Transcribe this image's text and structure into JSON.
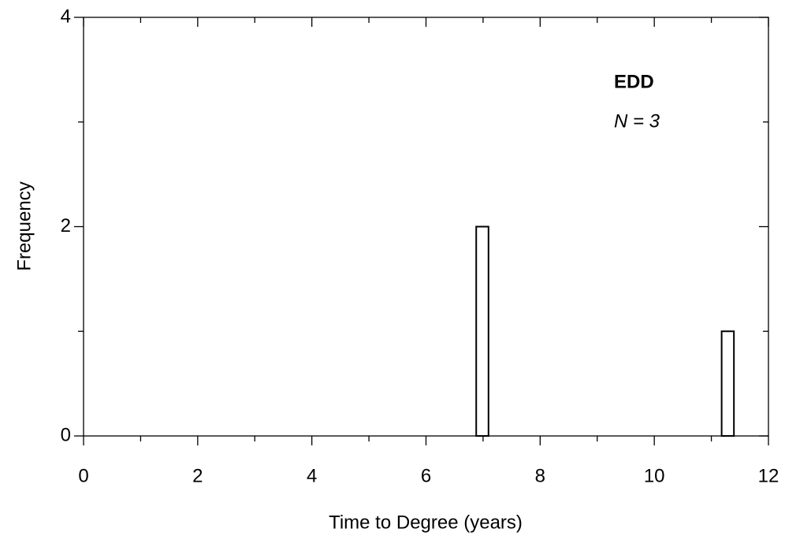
{
  "chart_data": {
    "type": "histogram",
    "xlabel": "Time to Degree (years)",
    "ylabel": "Frequency",
    "annotations": [
      "EDD",
      "N = 3"
    ],
    "bins": [
      6.88,
      7.095,
      7.31,
      7.525,
      7.74,
      7.955,
      8.17,
      8.385,
      8.6,
      8.815,
      9.03,
      9.245,
      9.46,
      9.675,
      9.89,
      10.105,
      10.32,
      10.535,
      10.75,
      10.965,
      11.18,
      11.395
    ],
    "values": [
      2,
      0,
      0,
      0,
      0,
      0,
      0,
      0,
      0,
      0,
      0,
      0,
      0,
      0,
      0,
      0,
      0,
      0,
      0,
      0,
      1
    ],
    "color": "#ffffff",
    "edgecolor": "#000000",
    "xlim": [
      0,
      12
    ],
    "xticks": [
      0,
      2,
      4,
      6,
      8,
      10,
      12
    ],
    "xminorticks": [
      1,
      3,
      5,
      7,
      9,
      11
    ],
    "ylim": [
      0,
      4
    ],
    "yticks": [
      0,
      2,
      4
    ],
    "yminorticks": [
      1,
      3
    ],
    "grid": false
  }
}
